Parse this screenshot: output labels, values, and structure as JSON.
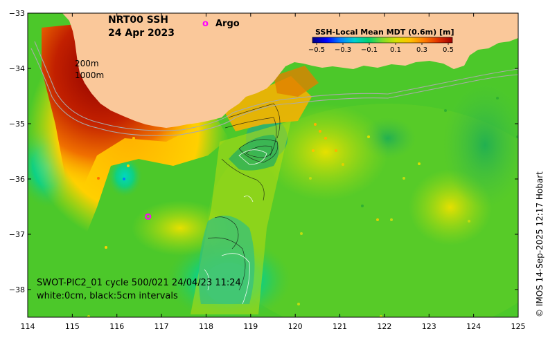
{
  "title": {
    "product": "NRT00 SSH",
    "date": "24 Apr 2023"
  },
  "legend": {
    "argo_symbol": "o",
    "argo_label": "Argo",
    "colorbar_title": "SSH-Local Mean MDT (0.6m) [m]",
    "colorbar_ticks": [
      "−0.5",
      "−0.3",
      "−0.1",
      "0.1",
      "0.3",
      "0.5"
    ],
    "colorbar_values": [
      -0.5,
      -0.3,
      -0.1,
      0.1,
      0.3,
      0.5
    ],
    "colorbar_colors": [
      "#00007f",
      "#0000ff",
      "#0080ff",
      "#00d0d0",
      "#00d070",
      "#7fdc2a",
      "#d8e000",
      "#ffc000",
      "#ff7a00",
      "#e03000",
      "#9e0000"
    ]
  },
  "isobaths": {
    "label_200": "200m",
    "label_1000": "1000m"
  },
  "swath_note": {
    "line1": "SWOT-PIC2_01 cycle 500/021 24/04/23 11:24",
    "line2": "white:0cm, black:5cm intervals"
  },
  "credit": "© IMOS 14-Sep-2025 12:17 Hobart",
  "axes": {
    "x_ticks": [
      "114",
      "115",
      "116",
      "117",
      "118",
      "119",
      "120",
      "121",
      "122",
      "123",
      "124",
      "125"
    ],
    "x_values": [
      114,
      115,
      116,
      117,
      118,
      119,
      120,
      121,
      122,
      123,
      124,
      125
    ],
    "y_ticks": [
      "−33",
      "−34",
      "−35",
      "−36",
      "−37",
      "−38"
    ],
    "y_values": [
      -33,
      -34,
      -35,
      -36,
      -37,
      -38
    ],
    "xlim": [
      114,
      125
    ],
    "ylim": [
      -38.5,
      -33
    ]
  },
  "colors": {
    "land": "#fac89a",
    "background_field": "#4cc82a",
    "frame": "#000000"
  },
  "argo_floats": [
    {
      "lon": 116.7,
      "lat": -36.68
    }
  ]
}
